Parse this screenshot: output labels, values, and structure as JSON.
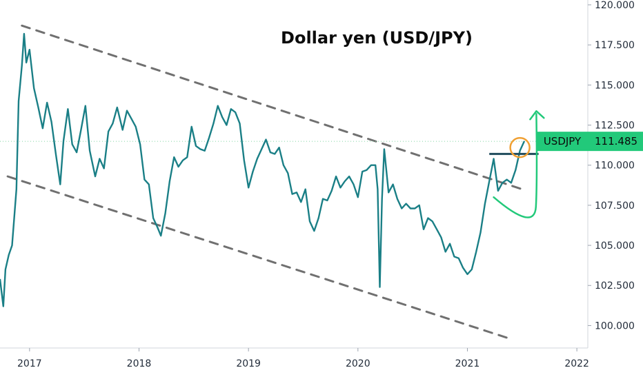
{
  "chart_data": {
    "type": "line",
    "title": "Dollar yen (USD/JPY)",
    "xlabel": "",
    "ylabel": "",
    "x_tick_labels": [
      "2017",
      "2018",
      "2019",
      "2020",
      "2021",
      "2022"
    ],
    "x_ticks": [
      2017.0,
      2018.0,
      2019.0,
      2020.0,
      2021.0,
      2022.0
    ],
    "y_tick_labels": [
      "100.000",
      "102.500",
      "105.000",
      "107.500",
      "110.000",
      "112.500",
      "115.000",
      "117.500",
      "120.000"
    ],
    "y_ticks": [
      100,
      102.5,
      105,
      107.5,
      110,
      112.5,
      115,
      117.5,
      120
    ],
    "xlim": [
      2016.73,
      2022.1
    ],
    "ylim": [
      98.6,
      120.3
    ],
    "grid": false,
    "series": [
      {
        "name": "USDJPY",
        "color": "#1a7f86",
        "x": [
          2016.73,
          2016.76,
          2016.78,
          2016.81,
          2016.84,
          2016.88,
          2016.9,
          2016.93,
          2016.95,
          2016.97,
          2017.0,
          2017.04,
          2017.08,
          2017.12,
          2017.16,
          2017.2,
          2017.24,
          2017.28,
          2017.31,
          2017.35,
          2017.39,
          2017.43,
          2017.47,
          2017.51,
          2017.55,
          2017.6,
          2017.64,
          2017.68,
          2017.72,
          2017.76,
          2017.8,
          2017.85,
          2017.89,
          2017.93,
          2017.97,
          2018.01,
          2018.05,
          2018.09,
          2018.13,
          2018.17,
          2018.2,
          2018.24,
          2018.28,
          2018.32,
          2018.36,
          2018.4,
          2018.44,
          2018.48,
          2018.52,
          2018.56,
          2018.6,
          2018.64,
          2018.68,
          2018.72,
          2018.76,
          2018.8,
          2018.84,
          2018.88,
          2018.92,
          2018.96,
          2019.0,
          2019.04,
          2019.08,
          2019.12,
          2019.16,
          2019.2,
          2019.24,
          2019.28,
          2019.32,
          2019.36,
          2019.4,
          2019.44,
          2019.48,
          2019.52,
          2019.56,
          2019.6,
          2019.64,
          2019.68,
          2019.72,
          2019.76,
          2019.8,
          2019.84,
          2019.88,
          2019.92,
          2019.96,
          2020.0,
          2020.04,
          2020.08,
          2020.12,
          2020.16,
          2020.18,
          2020.2,
          2020.22,
          2020.24,
          2020.28,
          2020.32,
          2020.36,
          2020.4,
          2020.44,
          2020.48,
          2020.52,
          2020.56,
          2020.6,
          2020.64,
          2020.68,
          2020.72,
          2020.76,
          2020.8,
          2020.84,
          2020.88,
          2020.92,
          2020.96,
          2021.0,
          2021.04,
          2021.08,
          2021.12,
          2021.16,
          2021.2,
          2021.24,
          2021.28,
          2021.32,
          2021.36,
          2021.4,
          2021.44,
          2021.48,
          2021.52
        ],
        "values": [
          102.9,
          101.2,
          103.5,
          104.4,
          105.0,
          108.5,
          114.0,
          116.2,
          118.2,
          116.4,
          117.2,
          114.8,
          113.6,
          112.3,
          113.9,
          112.7,
          110.7,
          108.8,
          111.5,
          113.5,
          111.3,
          110.8,
          112.2,
          113.7,
          110.9,
          109.3,
          110.4,
          109.8,
          112.1,
          112.6,
          113.6,
          112.2,
          113.4,
          112.9,
          112.4,
          111.3,
          109.1,
          108.8,
          106.7,
          106.1,
          105.6,
          107.0,
          109.0,
          110.5,
          109.9,
          110.3,
          110.5,
          112.4,
          111.2,
          111.0,
          110.9,
          111.7,
          112.6,
          113.7,
          113.0,
          112.5,
          113.5,
          113.3,
          112.6,
          110.3,
          108.6,
          109.6,
          110.4,
          111.0,
          111.6,
          110.8,
          110.7,
          111.1,
          110.0,
          109.5,
          108.2,
          108.3,
          107.7,
          108.5,
          106.5,
          105.9,
          106.7,
          107.9,
          107.8,
          108.4,
          109.3,
          108.6,
          109.0,
          109.3,
          108.8,
          108.0,
          109.6,
          109.7,
          110.0,
          110.0,
          108.5,
          102.4,
          107.9,
          111.0,
          108.3,
          108.8,
          107.9,
          107.3,
          107.6,
          107.3,
          107.3,
          107.5,
          106.0,
          106.7,
          106.5,
          106.0,
          105.5,
          104.6,
          105.1,
          104.3,
          104.2,
          103.6,
          103.2,
          103.5,
          104.6,
          105.8,
          107.6,
          109.0,
          110.4,
          108.4,
          108.9,
          109.1,
          108.9,
          109.7,
          110.9,
          111.5
        ]
      }
    ],
    "trend_lines": [
      {
        "name": "upper channel",
        "x": [
          2016.93,
          2021.5
        ],
        "values": [
          118.7,
          108.5
        ]
      },
      {
        "name": "lower channel",
        "x": [
          2016.8,
          2021.38
        ],
        "values": [
          109.3,
          99.2
        ]
      },
      {
        "name": "resistance",
        "x": [
          2021.2,
          2021.65
        ],
        "values": [
          110.7,
          110.7
        ]
      }
    ],
    "projection_arrow": {
      "x_start": 2021.24,
      "y_start": 108.0,
      "x_mid": 2021.5,
      "y_mid": 107.2,
      "x_end": 2021.63,
      "y_end": 113.2
    },
    "highlight_circle": {
      "x": 2021.48,
      "y": 111.1
    },
    "price_tag": {
      "label": "USDJPY",
      "value": "111.485",
      "value_num": 111.485,
      "color": "#22c97a"
    },
    "colors": {
      "line": "#1a7f86",
      "channel": "#707070",
      "resistance": "#1f4b5c",
      "arrow": "#22c97a",
      "circle": "#f0a033",
      "price_line": "#7dd3a0"
    }
  }
}
